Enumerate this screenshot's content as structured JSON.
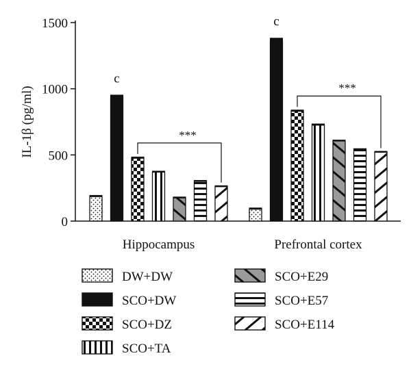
{
  "chart_data": {
    "type": "bar",
    "ylabel": "IL-1β (pg/ml)",
    "ylim": [
      0,
      1500
    ],
    "yticks": [
      0,
      500,
      1000,
      1500
    ],
    "groups": [
      "Hippocampus",
      "Prefrontal cortex"
    ],
    "series": [
      {
        "name": "DW+DW",
        "pattern": "dots",
        "values": [
          185,
          90
        ],
        "errors": [
          12,
          12
        ]
      },
      {
        "name": "SCO+DW",
        "pattern": "solid",
        "values": [
          945,
          1360
        ],
        "errors": [
          10,
          25
        ]
      },
      {
        "name": "SCO+DZ",
        "pattern": "checker",
        "values": [
          475,
          830
        ],
        "errors": [
          12,
          12
        ]
      },
      {
        "name": "SCO+TA",
        "pattern": "vstripes",
        "values": [
          370,
          725
        ],
        "errors": [
          10,
          12
        ]
      },
      {
        "name": "SCO+E29",
        "pattern": "gray-diag",
        "values": [
          175,
          605
        ],
        "errors": [
          10,
          10
        ]
      },
      {
        "name": "SCO+E57",
        "pattern": "hstripes",
        "values": [
          300,
          540
        ],
        "errors": [
          10,
          10
        ]
      },
      {
        "name": "SCO+E114",
        "pattern": "diag",
        "values": [
          260,
          520
        ],
        "errors": [
          10,
          10
        ]
      }
    ],
    "annotations": [
      {
        "group": 0,
        "series": 1,
        "text": "c"
      },
      {
        "group": 1,
        "series": 1,
        "text": "c"
      }
    ],
    "significance": [
      {
        "group": 0,
        "from_series": 2,
        "to_series": 6,
        "text": "***"
      },
      {
        "group": 1,
        "from_series": 2,
        "to_series": 6,
        "text": "***"
      }
    ],
    "legend_placement": "bottom"
  },
  "colors": {
    "ink": "#111111",
    "gray_fill": "#9a9a9a",
    "background": "#ffffff"
  }
}
